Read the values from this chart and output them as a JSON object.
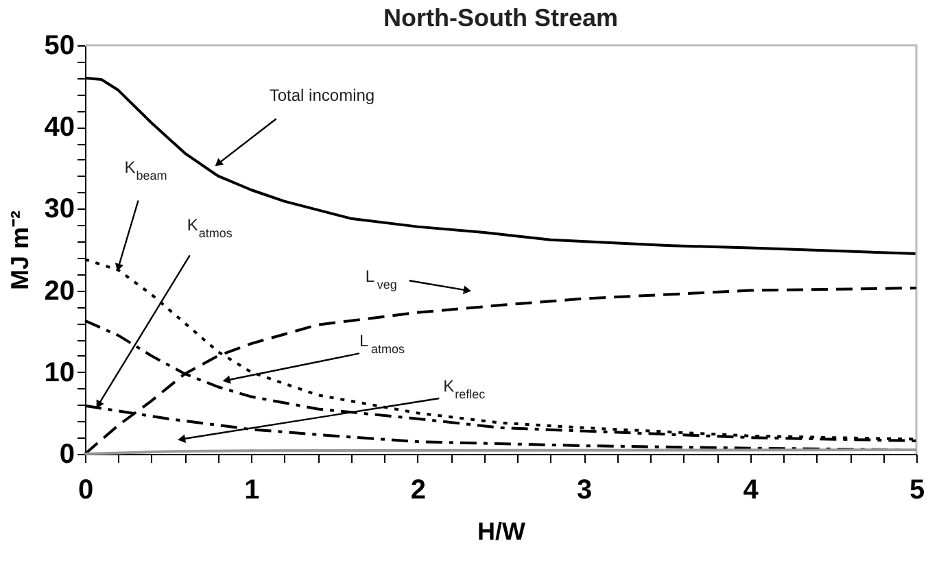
{
  "chart_data": {
    "type": "line",
    "title": "North-South Stream",
    "xlabel": "H/W",
    "ylabel": "MJ m⁻²",
    "xlim": [
      0,
      5
    ],
    "ylim": [
      0,
      50
    ],
    "xticks": [
      0,
      {
        "value": 0.2,
        "label": null
      },
      {
        "value": 0.4,
        "label": null
      },
      {
        "value": 0.6,
        "label": null
      },
      {
        "value": 0.8,
        "label": null
      },
      1,
      {
        "value": 1.2,
        "label": null
      },
      {
        "value": 1.4,
        "label": null
      },
      {
        "value": 1.6,
        "label": null
      },
      {
        "value": 1.8,
        "label": null
      },
      2,
      {
        "value": 2.2,
        "label": null
      },
      {
        "value": 2.4,
        "label": null
      },
      {
        "value": 2.6,
        "label": null
      },
      {
        "value": 2.8,
        "label": null
      },
      3,
      {
        "value": 3.2,
        "label": null
      },
      {
        "value": 3.4,
        "label": null
      },
      {
        "value": 3.6,
        "label": null
      },
      {
        "value": 3.8,
        "label": null
      },
      4,
      {
        "value": 4.2,
        "label": null
      },
      {
        "value": 4.4,
        "label": null
      },
      {
        "value": 4.6,
        "label": null
      },
      {
        "value": 4.8,
        "label": null
      },
      5
    ],
    "yticks": [
      0,
      {
        "value": 2,
        "label": null
      },
      {
        "value": 4,
        "label": null
      },
      {
        "value": 6,
        "label": null
      },
      {
        "value": 8,
        "label": null
      },
      10,
      {
        "value": 12,
        "label": null
      },
      {
        "value": 14,
        "label": null
      },
      {
        "value": 16,
        "label": null
      },
      {
        "value": 18,
        "label": null
      },
      20,
      {
        "value": 22,
        "label": null
      },
      {
        "value": 24,
        "label": null
      },
      {
        "value": 26,
        "label": null
      },
      {
        "value": 28,
        "label": null
      },
      30,
      {
        "value": 32,
        "label": null
      },
      {
        "value": 34,
        "label": null
      },
      {
        "value": 36,
        "label": null
      },
      {
        "value": 38,
        "label": null
      },
      40,
      {
        "value": 42,
        "label": null
      },
      {
        "value": 44,
        "label": null
      },
      {
        "value": 46,
        "label": null
      },
      {
        "value": 48,
        "label": null
      },
      50
    ],
    "grid": false,
    "marker": "none",
    "series": [
      {
        "color": "#000000",
        "line_style": "solid",
        "x": [
          0,
          0.1,
          0.2,
          0.4,
          0.6,
          0.8,
          1,
          1.2,
          1.6,
          2,
          2.4,
          2.8,
          3.5,
          4,
          5
        ],
        "values": [
          46,
          45.8,
          44.5,
          40.5,
          36.8,
          34,
          32.3,
          30.9,
          28.8,
          27.8,
          27.1,
          26.2,
          25.5,
          25.2,
          24.5
        ]
      },
      {
        "color": "#000000",
        "line_style": "dotted",
        "x": [
          0,
          0.2,
          0.4,
          0.6,
          0.8,
          1,
          1.4,
          2,
          2.5,
          3,
          4,
          5
        ],
        "values": [
          23.8,
          22.5,
          19.5,
          16,
          12.5,
          10,
          7.2,
          5,
          3.8,
          3.2,
          2.2,
          1.8
        ]
      },
      {
        "color": "#000000",
        "line_style": "dashdot",
        "x": [
          0,
          0.2,
          0.4,
          0.6,
          0.8,
          1,
          1.4,
          2,
          2.5,
          3,
          4,
          5
        ],
        "values": [
          16.3,
          14.5,
          12,
          9.8,
          8.2,
          7,
          5.5,
          4.3,
          3.2,
          2.8,
          2,
          1.6
        ]
      },
      {
        "color": "#000000",
        "line_style": "dashdot",
        "x": [
          0,
          0.5,
          1,
          1.5,
          2,
          3,
          4,
          5
        ],
        "values": [
          5.9,
          4.3,
          3,
          2.2,
          1.5,
          1,
          0.7,
          0.5
        ]
      },
      {
        "color": "#000000",
        "line_style": "dashed",
        "x": [
          0,
          0.2,
          0.4,
          0.6,
          0.8,
          1,
          1.4,
          1.6,
          2,
          2.5,
          3,
          3.5,
          4,
          5
        ],
        "values": [
          0,
          3.5,
          6.5,
          9.8,
          12,
          13.5,
          15.8,
          16.3,
          17.3,
          18.2,
          19,
          19.5,
          20,
          20.3
        ]
      },
      {
        "color": "#999999",
        "line_style": "solid",
        "x": [
          0,
          0.5,
          1,
          5
        ],
        "values": [
          0,
          0.3,
          0.4,
          0.5
        ]
      }
    ],
    "annotations": [
      {
        "text": "Total incoming",
        "x": 0.8,
        "y": 35.5
      },
      {
        "text": "K$_{beam}$",
        "x": 0.2,
        "y": 22.8
      },
      {
        "text": "K$_{atmos}$",
        "x": 0.08,
        "y": 6
      },
      {
        "text": "L$_{veg}$",
        "x": 2.3,
        "y": 20
      },
      {
        "text": "L$_{atmos}$",
        "x": 0.85,
        "y": 9
      },
      {
        "text": "K$_{reflec}$",
        "x": 0.58,
        "y": 1.8
      }
    ]
  }
}
